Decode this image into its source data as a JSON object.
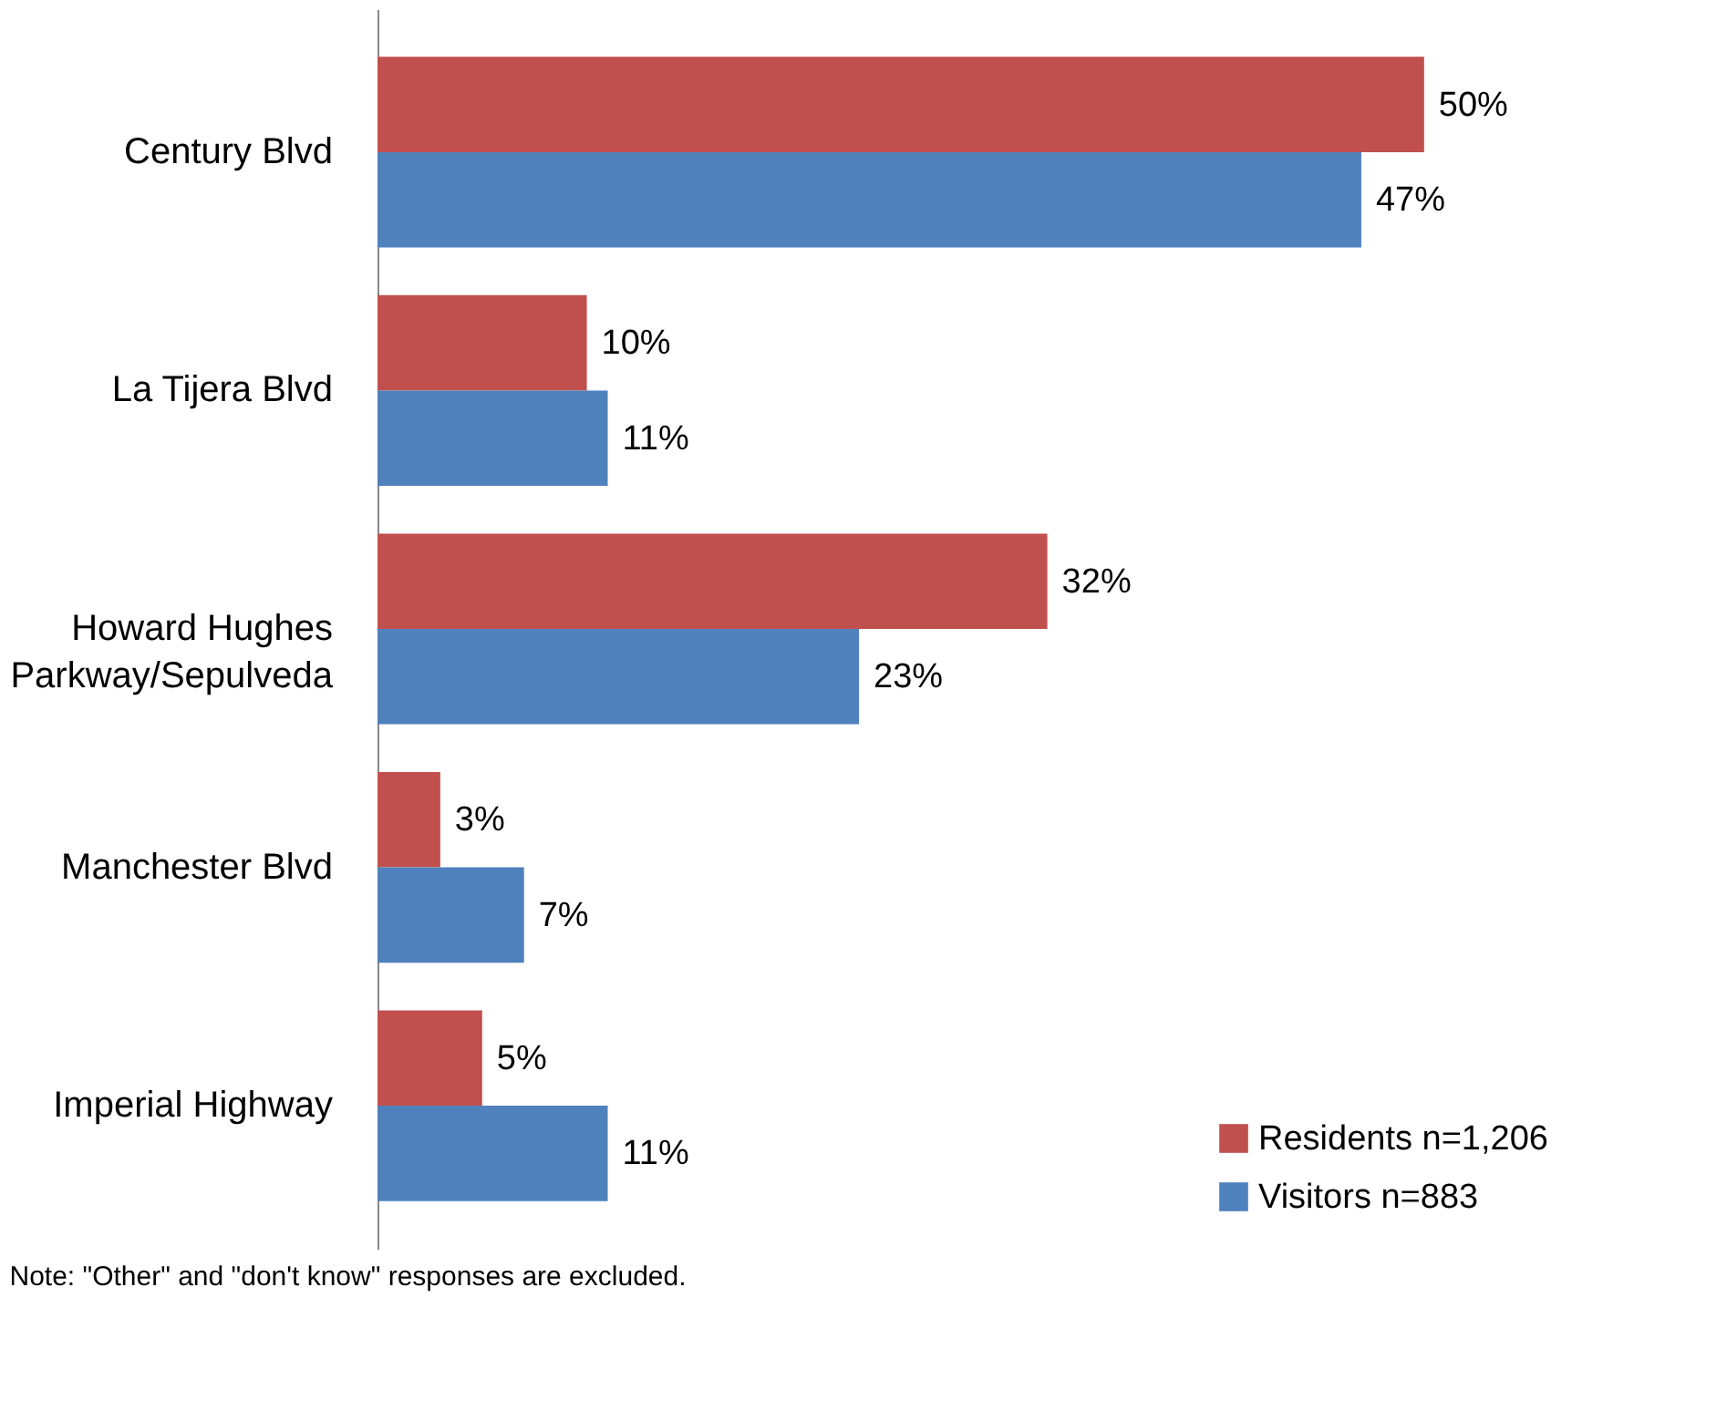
{
  "chart_data": {
    "type": "bar",
    "orientation": "horizontal",
    "categories": [
      "Century Blvd",
      "La Tijera Blvd",
      "Howard Hughes\nParkway/Sepulveda",
      "Manchester Blvd",
      "Imperial Highway"
    ],
    "series": [
      {
        "name": "Residents n=1,206",
        "color": "#c0504d",
        "values": [
          50,
          10,
          32,
          3,
          5
        ],
        "value_labels": [
          "50%",
          "10%",
          "32%",
          "3%",
          "5%"
        ]
      },
      {
        "name": "Visitors n=883",
        "color": "#4f81bd",
        "values": [
          47,
          11,
          23,
          7,
          11
        ],
        "value_labels": [
          "47%",
          "11%",
          "23%",
          "7%",
          "11%"
        ]
      }
    ],
    "legend": "bottom right",
    "grid": false,
    "annotations": [
      "Note:  \"Other\" and \"don't know\" responses are excluded."
    ]
  }
}
